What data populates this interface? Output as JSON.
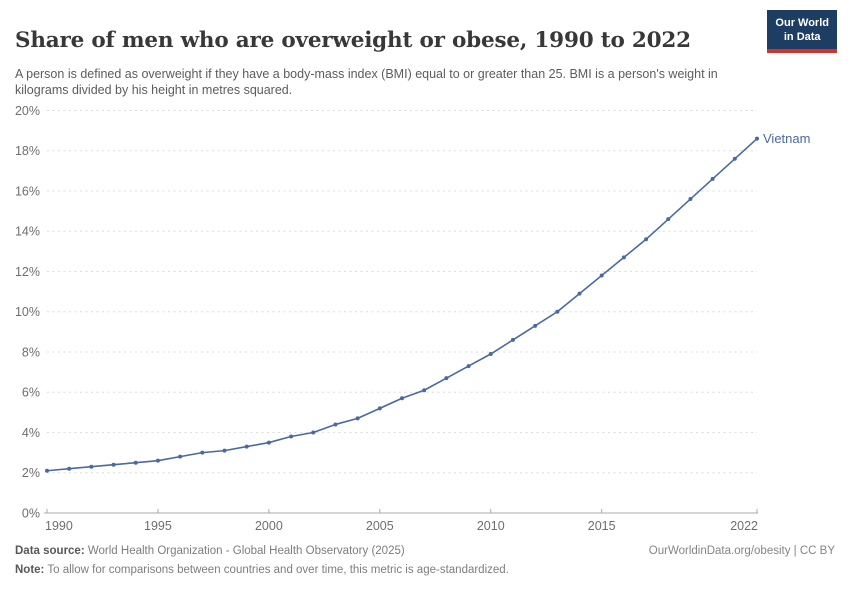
{
  "header": {
    "title": "Share of men who are overweight or obese, 1990 to 2022",
    "subtitle": "A person is defined as overweight if they have a body-mass index (BMI) equal to or greater than 25. BMI is a person's weight in kilograms divided by his height in metres squared.",
    "logo": {
      "line1": "Our World",
      "line2": "in Data",
      "bg_color": "#1d3d63",
      "accent_color": "#d0342c"
    }
  },
  "chart_data": {
    "type": "line",
    "title": "Share of men who are overweight or obese, 1990 to 2022",
    "xlabel": "",
    "ylabel": "",
    "xlim": [
      1990,
      2022
    ],
    "ylim": [
      0,
      20
    ],
    "x_ticks": [
      1990,
      1995,
      2000,
      2005,
      2010,
      2015,
      2022
    ],
    "y_ticks": [
      0,
      2,
      4,
      6,
      8,
      10,
      12,
      14,
      16,
      18,
      20
    ],
    "y_tick_suffix": "%",
    "grid": "horizontal-dashed",
    "legend_position": "end-of-line-label",
    "colors": {
      "grid": "#dcdcdc",
      "axis": "#a8a8a8",
      "tick_label": "#6e6e6e",
      "series": "#4a69a2"
    },
    "series": [
      {
        "name": "Vietnam",
        "color": "#4a69a2",
        "x": [
          1990,
          1991,
          1992,
          1993,
          1994,
          1995,
          1996,
          1997,
          1998,
          1999,
          2000,
          2001,
          2002,
          2003,
          2004,
          2005,
          2006,
          2007,
          2008,
          2009,
          2010,
          2011,
          2012,
          2013,
          2014,
          2015,
          2016,
          2017,
          2018,
          2019,
          2020,
          2021,
          2022
        ],
        "values": [
          2.1,
          2.2,
          2.3,
          2.4,
          2.5,
          2.6,
          2.8,
          3.0,
          3.1,
          3.3,
          3.5,
          3.8,
          4.0,
          4.4,
          4.7,
          5.2,
          5.7,
          6.1,
          6.7,
          7.3,
          7.9,
          8.6,
          9.3,
          10.0,
          10.9,
          11.8,
          12.7,
          13.6,
          14.6,
          15.6,
          16.6,
          17.6,
          18.6
        ]
      }
    ]
  },
  "footer": {
    "datasource_label": "Data source:",
    "datasource_text": " World Health Organization - Global Health Observatory (2025)",
    "rights": "OurWorldinData.org/obesity | CC BY",
    "note_label": "Note:",
    "note_text": " To allow for comparisons between countries and over time, this metric is age-standardized."
  }
}
